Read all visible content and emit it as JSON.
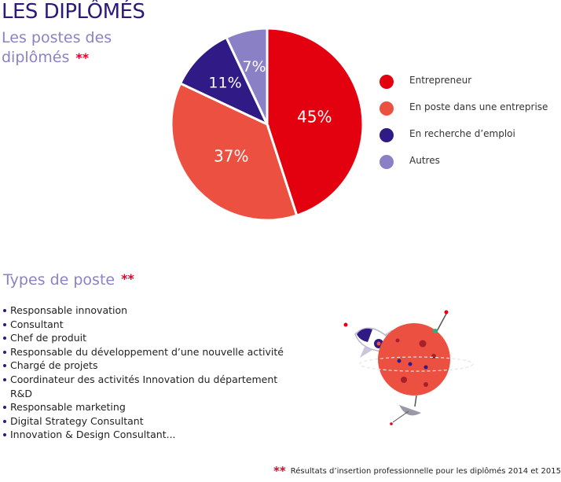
{
  "header": {
    "title": "LES DIPLÔMÉS",
    "subtitle": "Les postes des diplômés",
    "subtitle_mark": "**"
  },
  "chart_data": {
    "type": "pie",
    "slices": [
      {
        "label": "Entrepreneur",
        "value": 45,
        "display": "45%",
        "color": "#e3000f"
      },
      {
        "label": "En poste dans une entreprise",
        "value": 37,
        "display": "37%",
        "color": "#ec5040"
      },
      {
        "label": "En recherche d’emploi",
        "value": 11,
        "display": "11%",
        "color": "#2f1a86"
      },
      {
        "label": "Autres",
        "value": 7,
        "display": "7%",
        "color": "#8a80c6"
      }
    ],
    "legend_position": "right"
  },
  "types": {
    "title": "Types de poste",
    "mark": "**",
    "items": [
      "Responsable innovation",
      "Consultant",
      "Chef de produit",
      "Responsable du développement d’une nouvelle activité",
      "Chargé de projets",
      "Coordinateur des activités Innovation du département R&D",
      "Responsable marketing",
      "Digital Strategy Consultant",
      "Innovation & Design Consultant..."
    ]
  },
  "illustration": {
    "icons": [
      "rocket-icon",
      "planet-icon",
      "satellite-dish-icon"
    ]
  },
  "footnote": {
    "mark": "**",
    "text": "Résultats d’insertion professionnelle pour les diplômés 2014 et 2015"
  }
}
